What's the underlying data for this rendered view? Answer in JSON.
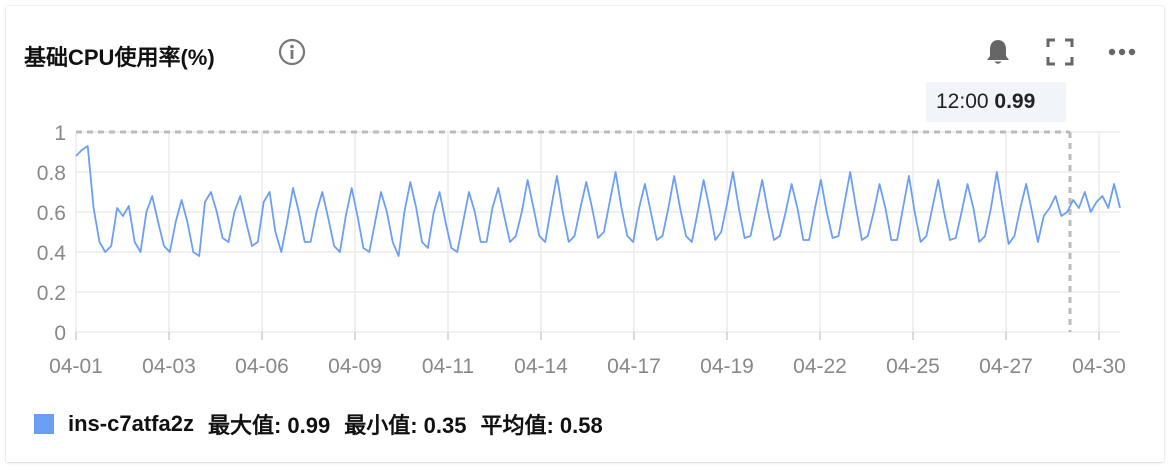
{
  "header": {
    "title": "基础CPU使用率(%)",
    "icons": [
      "info-icon",
      "bell-icon",
      "fullscreen-icon",
      "more-icon"
    ]
  },
  "tooltip": {
    "time": "12:00",
    "value": "0.99"
  },
  "legend": {
    "series_name": "ins-c7atfa2z",
    "max_label": "最大值: 0.99",
    "min_label": "最小值: 0.35",
    "avg_label": "平均值: 0.58",
    "color": "#6a9ff5"
  },
  "chart_data": {
    "type": "line",
    "title": "基础CPU使用率(%)",
    "xlabel": "",
    "ylabel": "",
    "ylim": [
      0,
      1
    ],
    "yticks": [
      "0",
      "0.2",
      "0.4",
      "0.6",
      "0.8",
      "1"
    ],
    "xticks": [
      "04-01",
      "04-03",
      "04-06",
      "04-09",
      "04-11",
      "04-14",
      "04-17",
      "04-19",
      "04-22",
      "04-25",
      "04-27",
      "04-30"
    ],
    "grid": true,
    "reference_line": {
      "value": 1
    },
    "cursor_date": "04-29 12:00",
    "series": [
      {
        "name": "ins-c7atfa2z",
        "color": "#6a9ff5",
        "values": [
          0.88,
          0.91,
          0.93,
          0.62,
          0.45,
          0.4,
          0.43,
          0.62,
          0.58,
          0.63,
          0.45,
          0.4,
          0.6,
          0.68,
          0.55,
          0.43,
          0.4,
          0.55,
          0.66,
          0.55,
          0.4,
          0.38,
          0.65,
          0.7,
          0.6,
          0.47,
          0.45,
          0.6,
          0.68,
          0.55,
          0.43,
          0.45,
          0.65,
          0.7,
          0.5,
          0.4,
          0.55,
          0.72,
          0.6,
          0.45,
          0.45,
          0.6,
          0.7,
          0.57,
          0.43,
          0.4,
          0.58,
          0.72,
          0.58,
          0.42,
          0.4,
          0.55,
          0.7,
          0.6,
          0.45,
          0.38,
          0.6,
          0.75,
          0.62,
          0.45,
          0.42,
          0.6,
          0.7,
          0.55,
          0.42,
          0.4,
          0.55,
          0.7,
          0.6,
          0.45,
          0.45,
          0.62,
          0.72,
          0.58,
          0.45,
          0.48,
          0.6,
          0.76,
          0.62,
          0.48,
          0.45,
          0.62,
          0.78,
          0.6,
          0.45,
          0.48,
          0.62,
          0.75,
          0.62,
          0.47,
          0.5,
          0.65,
          0.8,
          0.62,
          0.48,
          0.45,
          0.62,
          0.74,
          0.6,
          0.46,
          0.48,
          0.62,
          0.78,
          0.62,
          0.48,
          0.45,
          0.6,
          0.76,
          0.62,
          0.46,
          0.5,
          0.64,
          0.8,
          0.62,
          0.47,
          0.48,
          0.62,
          0.76,
          0.6,
          0.46,
          0.48,
          0.6,
          0.74,
          0.62,
          0.46,
          0.46,
          0.62,
          0.76,
          0.6,
          0.47,
          0.48,
          0.64,
          0.8,
          0.62,
          0.46,
          0.48,
          0.6,
          0.74,
          0.62,
          0.46,
          0.46,
          0.62,
          0.78,
          0.6,
          0.45,
          0.48,
          0.62,
          0.76,
          0.6,
          0.46,
          0.47,
          0.6,
          0.74,
          0.62,
          0.45,
          0.48,
          0.62,
          0.8,
          0.62,
          0.44,
          0.48,
          0.62,
          0.74,
          0.6,
          0.45,
          0.58,
          0.62,
          0.68,
          0.58,
          0.6,
          0.66,
          0.62,
          0.7,
          0.6,
          0.65,
          0.68,
          0.62,
          0.74,
          0.62
        ]
      }
    ]
  }
}
